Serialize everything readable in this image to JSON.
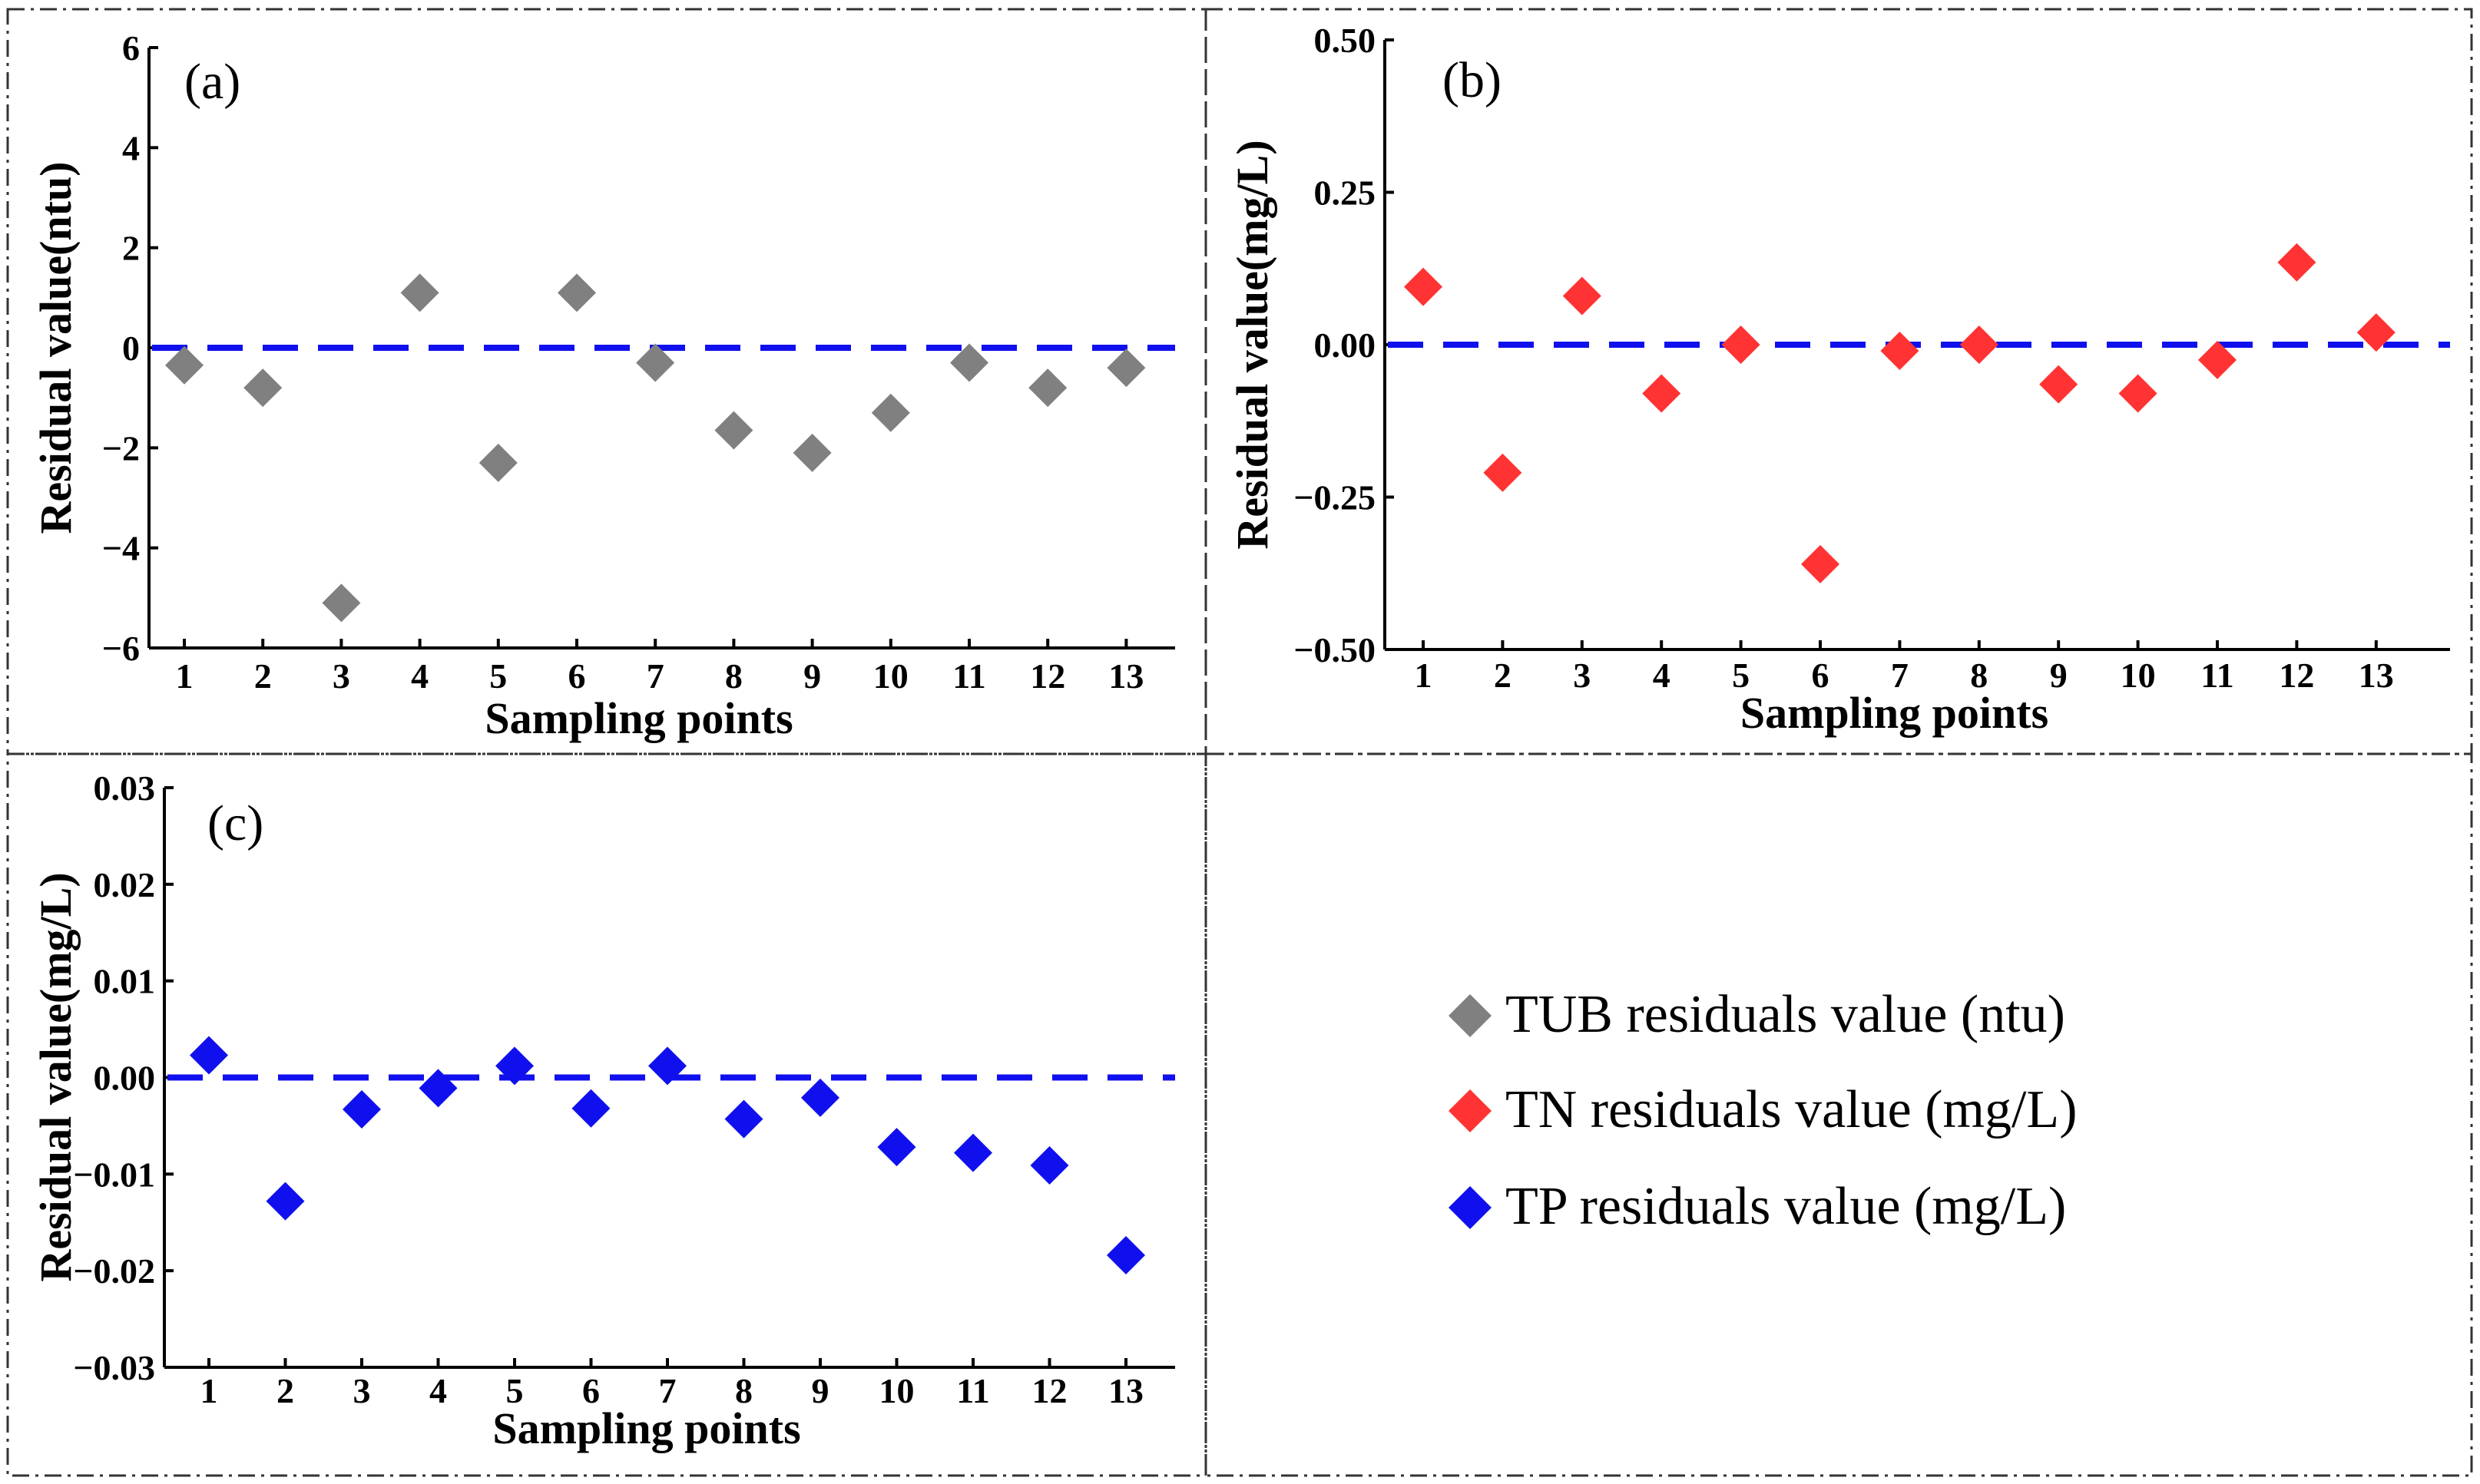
{
  "chart_data": [
    {
      "id": "a",
      "type": "scatter",
      "panel_label": "(a)",
      "xlabel": "Sampling points",
      "ylabel": "Residual value(ntu)",
      "x": [
        1,
        2,
        3,
        4,
        5,
        6,
        7,
        8,
        9,
        10,
        11,
        12,
        13
      ],
      "values": [
        -0.35,
        -0.8,
        -5.1,
        1.1,
        -2.3,
        1.1,
        -0.3,
        -1.65,
        -2.1,
        -1.3,
        -0.3,
        -0.8,
        -0.4
      ],
      "ylim": [
        -6,
        6
      ],
      "yticks": [
        -6,
        -4,
        -2,
        0,
        2,
        4,
        6
      ],
      "ytick_labels": [
        "−6",
        "−4",
        "−2",
        "0",
        "2",
        "4",
        "6"
      ],
      "xticks": [
        "1",
        "2",
        "3",
        "4",
        "5",
        "6",
        "7",
        "8",
        "9",
        "10",
        "11",
        "12",
        "13"
      ],
      "reference_line": 0,
      "color": "#808080",
      "series_name": "TUB residuals value (ntu)"
    },
    {
      "id": "b",
      "type": "scatter",
      "panel_label": "(b)",
      "xlabel": "Sampling points",
      "ylabel": "Residual value(mg/L)",
      "x": [
        1,
        2,
        3,
        4,
        5,
        6,
        7,
        8,
        9,
        10,
        11,
        12,
        13
      ],
      "values": [
        0.095,
        -0.21,
        0.08,
        -0.08,
        0.0,
        -0.36,
        -0.01,
        0.0,
        -0.065,
        -0.08,
        -0.025,
        0.135,
        0.02
      ],
      "ylim": [
        -0.5,
        0.5
      ],
      "yticks": [
        -0.5,
        -0.25,
        0,
        0.25,
        0.5
      ],
      "ytick_labels": [
        "−0.50",
        "−0.25",
        "0.00",
        "0.25",
        "0.50"
      ],
      "xticks": [
        "1",
        "2",
        "3",
        "4",
        "5",
        "6",
        "7",
        "8",
        "9",
        "10",
        "11",
        "12",
        "13"
      ],
      "reference_line": 0,
      "color": "#ff3333",
      "series_name": "TN residuals value (mg/L)"
    },
    {
      "id": "c",
      "type": "scatter",
      "panel_label": "(c)",
      "xlabel": "Sampling points",
      "ylabel": "Residual value(mg/L)",
      "x": [
        1,
        2,
        3,
        4,
        5,
        6,
        7,
        8,
        9,
        10,
        11,
        12,
        13
      ],
      "values": [
        0.0023,
        -0.0128,
        -0.0033,
        -0.0011,
        0.0012,
        -0.0032,
        0.0012,
        -0.0043,
        -0.0021,
        -0.0072,
        -0.0078,
        -0.0091,
        -0.0184
      ],
      "ylim": [
        -0.03,
        0.03
      ],
      "yticks": [
        -0.03,
        -0.02,
        -0.01,
        0,
        0.01,
        0.02,
        0.03
      ],
      "ytick_labels": [
        "−0.03",
        "−0.02",
        "−0.01",
        "0.00",
        "0.01",
        "0.02",
        "0.03"
      ],
      "xticks": [
        "1",
        "2",
        "3",
        "4",
        "5",
        "6",
        "7",
        "8",
        "9",
        "10",
        "11",
        "12",
        "13"
      ],
      "reference_line": 0,
      "color": "#1010ee",
      "series_name": "TP residuals value (mg/L)"
    }
  ],
  "legend": [
    {
      "label": "TUB residuals value (ntu)",
      "color": "#808080",
      "marker": "diamond"
    },
    {
      "label": "TN residuals value (mg/L)",
      "color": "#ff3333",
      "marker": "diamond"
    },
    {
      "label": "TP residuals value (mg/L)",
      "color": "#1010ee",
      "marker": "diamond"
    }
  ],
  "colors": {
    "reference_line": "#1010ee",
    "axes": "#000000",
    "frame": "#333333"
  }
}
